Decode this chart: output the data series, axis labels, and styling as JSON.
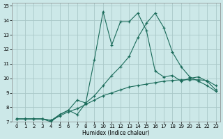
{
  "title": "",
  "xlabel": "Humidex (Indice chaleur)",
  "bg_color": "#cce8e8",
  "grid_color": "#aac8c8",
  "line_color": "#1a6b5a",
  "xlim": [
    -0.5,
    23.5
  ],
  "ylim": [
    7,
    15.2
  ],
  "xticks": [
    0,
    1,
    2,
    3,
    4,
    5,
    6,
    7,
    8,
    9,
    10,
    11,
    12,
    13,
    14,
    15,
    16,
    17,
    18,
    19,
    20,
    21,
    22,
    23
  ],
  "yticks": [
    7,
    8,
    9,
    10,
    11,
    12,
    13,
    14,
    15
  ],
  "series1_x": [
    0,
    1,
    2,
    3,
    4,
    5,
    6,
    7,
    8,
    9,
    10,
    11,
    12,
    13,
    14,
    15,
    16,
    17,
    18,
    19,
    20,
    21,
    22,
    23
  ],
  "series1_y": [
    7.2,
    7.2,
    7.2,
    7.2,
    7.0,
    7.5,
    7.8,
    8.5,
    8.3,
    11.3,
    14.6,
    12.3,
    13.9,
    13.9,
    14.5,
    13.3,
    10.5,
    10.1,
    10.2,
    9.8,
    10.0,
    10.1,
    9.8,
    9.2
  ],
  "series2_x": [
    0,
    1,
    2,
    3,
    4,
    5,
    6,
    7,
    8,
    9,
    10,
    11,
    12,
    13,
    14,
    15,
    16,
    17,
    18,
    19,
    20,
    21,
    22,
    23
  ],
  "series2_y": [
    7.2,
    7.2,
    7.2,
    7.2,
    7.1,
    7.5,
    7.8,
    7.5,
    8.3,
    8.8,
    9.5,
    10.2,
    10.8,
    11.5,
    12.8,
    13.8,
    14.5,
    13.5,
    11.8,
    10.8,
    10.1,
    9.8,
    9.5,
    9.1
  ],
  "series3_x": [
    0,
    1,
    2,
    3,
    4,
    5,
    6,
    7,
    8,
    9,
    10,
    11,
    12,
    13,
    14,
    15,
    16,
    17,
    18,
    19,
    20,
    21,
    22,
    23
  ],
  "series3_y": [
    7.2,
    7.2,
    7.2,
    7.2,
    7.1,
    7.4,
    7.7,
    7.9,
    8.2,
    8.5,
    8.8,
    9.0,
    9.2,
    9.4,
    9.5,
    9.6,
    9.7,
    9.8,
    9.85,
    9.9,
    9.9,
    9.9,
    9.85,
    9.5
  ]
}
